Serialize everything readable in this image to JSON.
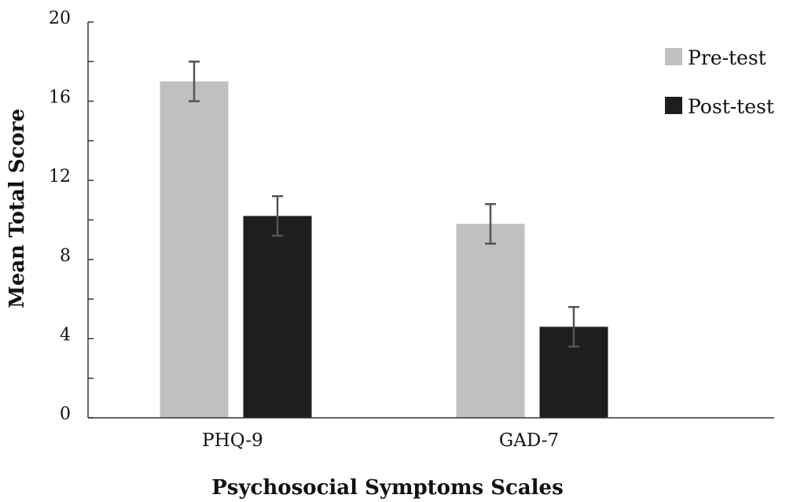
{
  "chart_data": {
    "type": "bar",
    "categories": [
      "PHQ-9",
      "GAD-7"
    ],
    "series": [
      {
        "name": "Pre-test",
        "color": "#c0c0c0",
        "values": [
          17.0,
          9.8
        ],
        "error": [
          1.0,
          1.0
        ]
      },
      {
        "name": "Post-test",
        "color": "#1e1e1e",
        "values": [
          10.2,
          4.6
        ],
        "error": [
          1.0,
          1.0
        ]
      }
    ],
    "title": "",
    "xlabel": "Psychosocial Symptoms Scales",
    "ylabel": "Mean Total Score",
    "ylim": [
      0,
      20
    ],
    "yticks": [
      0,
      4,
      8,
      12,
      16,
      20
    ],
    "ytick_labels": [
      "0",
      "4",
      "8",
      "12",
      "16",
      "20"
    ],
    "grid": false,
    "legend_position": "top-right",
    "error_bar_color": "#555555"
  }
}
